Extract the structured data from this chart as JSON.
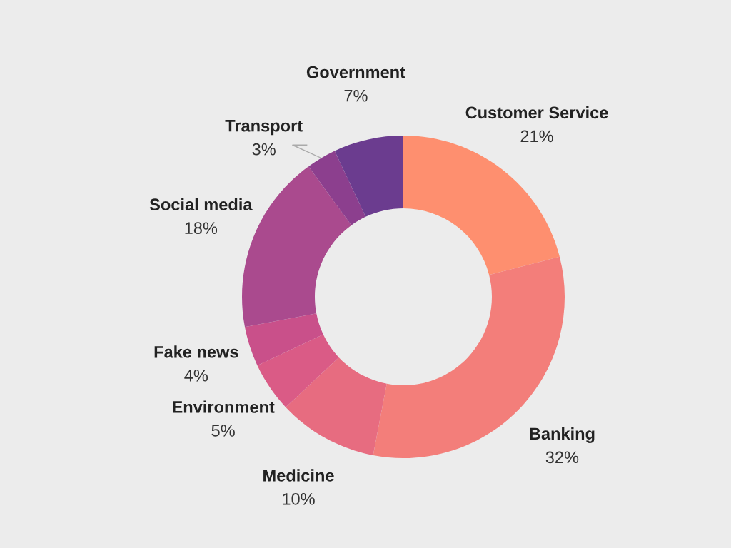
{
  "chart_data": {
    "type": "donut",
    "categories": [
      "Customer Service",
      "Banking",
      "Medicine",
      "Environment",
      "Fake news",
      "Social media",
      "Transport",
      "Government"
    ],
    "values": [
      21,
      32,
      10,
      5,
      4,
      18,
      3,
      7
    ],
    "colors": [
      "#fe8f6f",
      "#f37e7a",
      "#e76c80",
      "#da5b86",
      "#c9508a",
      "#aa4a8e",
      "#8c3f8e",
      "#6b3c8f"
    ],
    "value_labels": [
      "21%",
      "32%",
      "10%",
      "5%",
      "4%",
      "18%",
      "3%",
      "7%"
    ],
    "legend": false
  }
}
